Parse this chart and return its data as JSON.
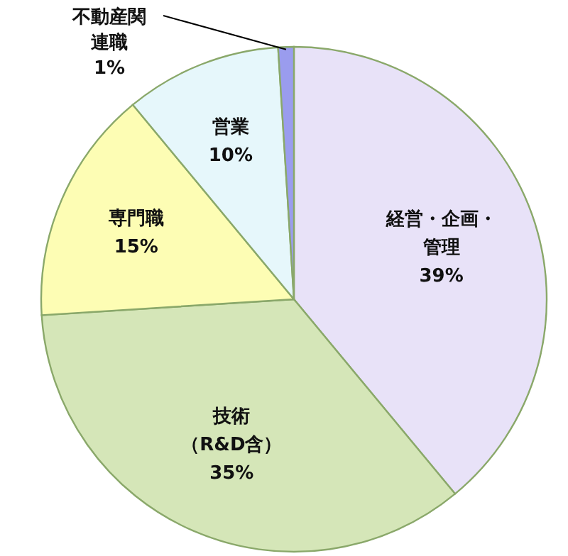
{
  "chart_data": {
    "type": "pie",
    "categories": [
      "経営・企画・管理",
      "技術（R&D含）",
      "専門職",
      "営業",
      "不動産関連職"
    ],
    "values": [
      39,
      35,
      15,
      10,
      1
    ],
    "value_labels": [
      "39%",
      "35%",
      "15%",
      "10%",
      "1%"
    ],
    "colors": [
      "#e8e2f8",
      "#d5e6b8",
      "#fdfdb4",
      "#e6f7fb",
      "#9a9cee"
    ]
  }
}
